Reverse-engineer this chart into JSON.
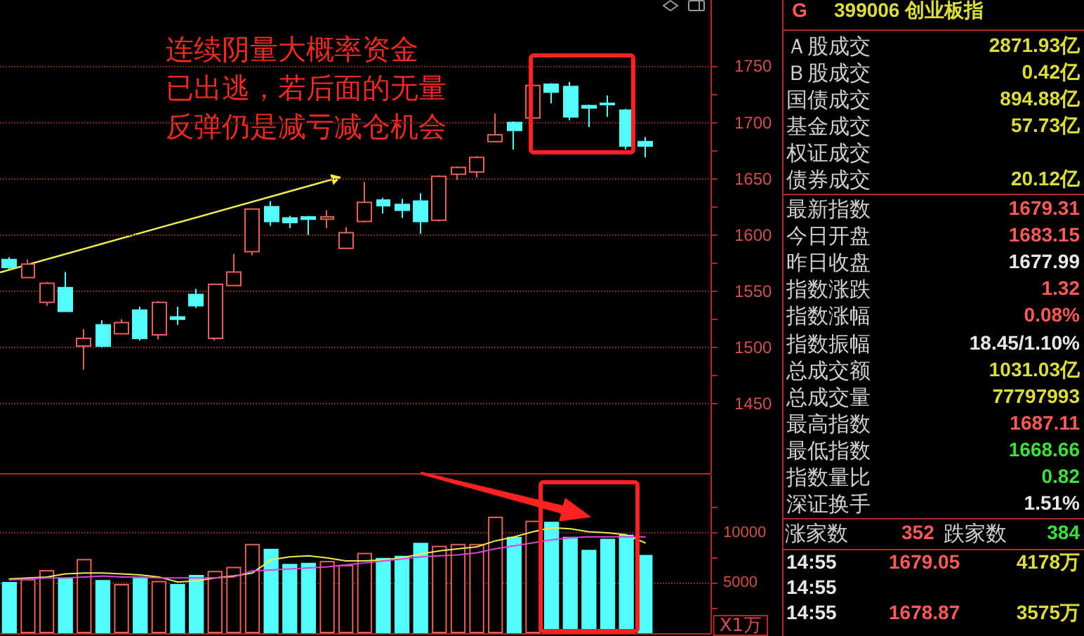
{
  "chart_data": [
    {
      "type": "candlestick",
      "categories": [
        null,
        null,
        null,
        null,
        null,
        null,
        null,
        null,
        null,
        null,
        null,
        null,
        null,
        null,
        null,
        null,
        null,
        null,
        null,
        null,
        null,
        null,
        null,
        null,
        null,
        null,
        null,
        null,
        null,
        null,
        null,
        null,
        null,
        null,
        null,
        null,
        null,
        null
      ],
      "ohlc": [
        [
          1578,
          1580,
          1569,
          1571
        ],
        [
          1562,
          1578,
          1562,
          1574
        ],
        [
          1540,
          1558,
          1537,
          1557
        ],
        [
          1553,
          1567,
          1532,
          1532
        ],
        [
          1501,
          1516,
          1480,
          1508
        ],
        [
          1520,
          1524,
          1500,
          1501
        ],
        [
          1512,
          1525,
          1512,
          1522
        ],
        [
          1533,
          1536,
          1506,
          1508
        ],
        [
          1511,
          1541,
          1507,
          1540
        ],
        [
          1527,
          1536,
          1520,
          1525
        ],
        [
          1547,
          1552,
          1535,
          1537
        ],
        [
          1508,
          1556,
          1506,
          1556
        ],
        [
          1555,
          1583,
          1555,
          1567
        ],
        [
          1585,
          1623,
          1582,
          1623
        ],
        [
          1625,
          1630,
          1608,
          1612
        ],
        [
          1615,
          1617,
          1606,
          1611
        ],
        [
          1616,
          1617,
          1600,
          1614
        ],
        [
          1614,
          1622,
          1606,
          1616
        ],
        [
          1588,
          1607,
          1588,
          1602
        ],
        [
          1612,
          1647,
          1611,
          1629
        ],
        [
          1631,
          1633,
          1619,
          1626
        ],
        [
          1627,
          1632,
          1615,
          1622
        ],
        [
          1630,
          1637,
          1601,
          1612
        ],
        [
          1613,
          1653,
          1612,
          1652
        ],
        [
          1654,
          1661,
          1649,
          1660
        ],
        [
          1656,
          1670,
          1651,
          1669
        ],
        [
          1683,
          1708,
          1683,
          1689
        ],
        [
          1700,
          1701,
          1676,
          1693
        ],
        [
          1704,
          1734,
          1704,
          1733
        ],
        [
          1734,
          1735,
          1717,
          1727
        ],
        [
          1732,
          1736,
          1702,
          1705
        ],
        [
          1715,
          1716,
          1696,
          1713
        ],
        [
          1717,
          1724,
          1705,
          1716
        ],
        [
          1711,
          1712,
          1676,
          1679
        ],
        [
          1683,
          1687,
          1669,
          1679
        ],
        null,
        null,
        null
      ],
      "colors": [
        "#54fcfc",
        "#e8605a",
        "#e8605a",
        "#54fcfc",
        "#e8605a",
        "#54fcfc",
        "#e8605a",
        "#54fcfc",
        "#e8605a",
        "#54fcfc",
        "#54fcfc",
        "#e8605a",
        "#e8605a",
        "#e8605a",
        "#54fcfc",
        "#54fcfc",
        "#54fcfc",
        "#e8605a",
        "#e8605a",
        "#e8605a",
        "#54fcfc",
        "#54fcfc",
        "#54fcfc",
        "#e8605a",
        "#e8605a",
        "#e8605a",
        "#e8605a",
        "#54fcfc",
        "#e8605a",
        "#54fcfc",
        "#54fcfc",
        "#54fcfc",
        "#54fcfc",
        "#54fcfc",
        "#54fcfc",
        null,
        null,
        null
      ],
      "ylim": [
        1388,
        1809
      ],
      "yticks": [
        1450,
        {
          "value": 1475,
          "label": null
        },
        1500,
        {
          "value": 1525,
          "label": null
        },
        1550,
        {
          "value": 1575,
          "label": null
        },
        1600,
        {
          "value": 1625,
          "label": null
        },
        1650,
        {
          "value": 1675,
          "label": null
        },
        1700,
        {
          "value": 1725,
          "label": null
        },
        1750
      ],
      "grid": "y",
      "tick_labels": "y",
      "annotations": [
        "连续阴量大概率资金",
        "已出逃，若后面的无量",
        "反弹仍是减亏减仓机会"
      ]
    },
    {
      "type": "bar",
      "categories": [
        null,
        null,
        null,
        null,
        null,
        null,
        null,
        null,
        null,
        null,
        null,
        null,
        null,
        null,
        null,
        null,
        null,
        null,
        null,
        null,
        null,
        null,
        null,
        null,
        null,
        null,
        null,
        null,
        null,
        null,
        null,
        null,
        null,
        null,
        null,
        null,
        null,
        null
      ],
      "series": [
        {
          "type": "bar",
          "values": [
            5100,
            5400,
            6300,
            5500,
            7400,
            5300,
            4900,
            5500,
            5200,
            4900,
            5800,
            6200,
            6600,
            8900,
            8400,
            6900,
            7000,
            7200,
            6800,
            8000,
            7500,
            7700,
            9000,
            8700,
            8900,
            8900,
            11600,
            9600,
            11200,
            11100,
            9600,
            8300,
            9400,
            9800,
            7800,
            null,
            null,
            null
          ],
          "colors": [
            "#54fcfc",
            "#e8605a",
            "#e8605a",
            "#54fcfc",
            "#e8605a",
            "#54fcfc",
            "#e8605a",
            "#54fcfc",
            "#e8605a",
            "#54fcfc",
            "#54fcfc",
            "#e8605a",
            "#e8605a",
            "#e8605a",
            "#54fcfc",
            "#54fcfc",
            "#54fcfc",
            "#e8605a",
            "#e8605a",
            "#e8605a",
            "#54fcfc",
            "#54fcfc",
            "#54fcfc",
            "#e8605a",
            "#e8605a",
            "#e8605a",
            "#e8605a",
            "#54fcfc",
            "#e8605a",
            "#54fcfc",
            "#54fcfc",
            "#54fcfc",
            "#54fcfc",
            "#54fcfc",
            "#54fcfc",
            null,
            null,
            null
          ]
        },
        {
          "type": "line",
          "color": "#ecec50",
          "values": [
            5400,
            5500,
            5600,
            5900,
            6000,
            6000,
            5900,
            5800,
            5600,
            5100,
            5200,
            5500,
            5700,
            6000,
            7300,
            7600,
            7700,
            7500,
            7200,
            7200,
            7300,
            7500,
            7900,
            8200,
            8400,
            8600,
            9200,
            9600,
            10100,
            10500,
            10400,
            10100,
            10000,
            9800,
            9000,
            null,
            null,
            null
          ]
        },
        {
          "type": "line",
          "color": "#d844d8",
          "values": [
            5300,
            5400,
            5500,
            5500,
            5600,
            5700,
            5600,
            5600,
            5500,
            5500,
            5500,
            5500,
            5600,
            6200,
            6300,
            6400,
            6500,
            6600,
            6800,
            7000,
            7200,
            7400,
            7600,
            7700,
            7800,
            8000,
            8400,
            8700,
            9000,
            9300,
            9500,
            9600,
            9600,
            9600,
            9600,
            null,
            null,
            null
          ]
        }
      ],
      "ylim": [
        0,
        15800
      ],
      "yticks": [
        {
          "value": 2500,
          "label": null
        },
        5000,
        {
          "value": 7500,
          "label": null
        },
        10000,
        {
          "value": 12500,
          "label": null
        }
      ],
      "ylabel": "X1万",
      "grid": "y",
      "tick_labels": "y",
      "marker": "none"
    },
    {
      "type": "other",
      "title": "399006 创业板指",
      "categories": [
        "Ａ股成交",
        "Ｂ股成交",
        "国债成交",
        "基金成交",
        "权证成交",
        "债券成交",
        "最新指数",
        "今日开盘",
        "昨日收盘",
        "指数涨跌",
        "指数涨幅",
        "指数振幅",
        "总成交额",
        "总成交量",
        "最高指数",
        "最低指数",
        "指数量比",
        "深证换手"
      ],
      "value_labels": [
        "2871.93亿",
        "0.42亿",
        "894.88亿",
        "57.73亿",
        null,
        "20.12亿",
        "1679.31",
        "1683.15",
        "1677.99",
        "1.32",
        "0.08%",
        "18.45/1.10%",
        "1031.03亿",
        "77797993",
        "1687.11",
        "1668.66",
        "0.82",
        "1.51%"
      ],
      "annotations": [
        "G",
        "涨家数",
        "352",
        "跌家数",
        "384",
        "14:55",
        "1679.05",
        "4178万",
        "14:55",
        "14:55",
        "1678.87",
        "3575万"
      ]
    }
  ]
}
